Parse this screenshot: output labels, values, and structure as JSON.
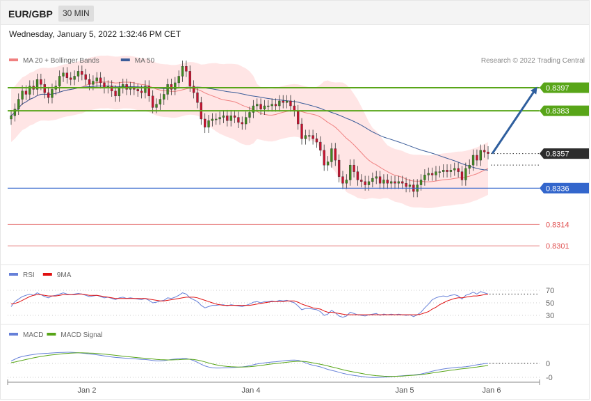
{
  "header": {
    "symbol": "EUR/GBP",
    "timeframe": "30 MIN",
    "timestamp": "Wednesday, January 5, 2022 1:32:46 PM CET"
  },
  "credit": "Research © 2022 Trading Central",
  "colors": {
    "resistance": "#58a518",
    "pivot": "#3366cc",
    "support": "#e05050",
    "current": "#2d2d2d",
    "candle_up": "#3f8a1f",
    "candle_down": "#c8102e",
    "bands_fill": "#ffdcdc",
    "ma20": "#f08080",
    "ma50": "#3a5c99",
    "rsi": "#6680d8",
    "rsi_ma": "#e01010",
    "macd": "#6680d8",
    "macd_signal": "#58a518",
    "arrow": "#2f5f9e"
  },
  "chart_data": [
    {
      "type": "candlestick",
      "legend": [
        {
          "name": "MA 20 + Bollinger Bands",
          "color": "#f08080"
        },
        {
          "name": "MA 50",
          "color": "#3a5c99"
        }
      ],
      "legend_position": "top-left",
      "ylim": [
        0.8293,
        0.8408
      ],
      "x_ticks": [
        "Jan 2",
        "Jan 4",
        "Jan 5",
        "Jan 6"
      ],
      "levels": [
        {
          "value": 0.8397,
          "label": "0.8397",
          "kind": "resistance"
        },
        {
          "value": 0.8383,
          "label": "0.8383",
          "kind": "resistance"
        },
        {
          "value": 0.8357,
          "label": "0.8357",
          "kind": "current"
        },
        {
          "value": 0.8336,
          "label": "0.8336",
          "kind": "pivot"
        },
        {
          "value": 0.8314,
          "label": "0.8314",
          "kind": "support"
        },
        {
          "value": 0.8301,
          "label": "0.8301",
          "kind": "support"
        }
      ],
      "projection": {
        "from": 0.8357,
        "to": 0.8397
      },
      "close": [
        0.838,
        0.8384,
        0.839,
        0.8395,
        0.8393,
        0.8398,
        0.8396,
        0.8402,
        0.8399,
        0.8394,
        0.8391,
        0.8396,
        0.8398,
        0.8404,
        0.8406,
        0.8403,
        0.8402,
        0.8404,
        0.8407,
        0.8405,
        0.8402,
        0.8399,
        0.8401,
        0.8403,
        0.84,
        0.8397,
        0.8398,
        0.8395,
        0.8392,
        0.8397,
        0.8399,
        0.8396,
        0.8397,
        0.8396,
        0.8395,
        0.8394,
        0.8398,
        0.8392,
        0.8385,
        0.8387,
        0.839,
        0.8393,
        0.8399,
        0.8396,
        0.84,
        0.8404,
        0.841,
        0.8407,
        0.8398,
        0.8394,
        0.8388,
        0.8378,
        0.8373,
        0.8377,
        0.8378,
        0.8378,
        0.8379,
        0.838,
        0.8377,
        0.838,
        0.8379,
        0.8376,
        0.8375,
        0.8379,
        0.8382,
        0.8386,
        0.8387,
        0.8384,
        0.8386,
        0.8386,
        0.8387,
        0.8386,
        0.8389,
        0.8388,
        0.8389,
        0.8386,
        0.8383,
        0.8375,
        0.8366,
        0.8368,
        0.8368,
        0.8366,
        0.8364,
        0.8359,
        0.835,
        0.8352,
        0.836,
        0.8353,
        0.8343,
        0.8339,
        0.8341,
        0.835,
        0.8346,
        0.8341,
        0.834,
        0.8338,
        0.834,
        0.8342,
        0.8343,
        0.8339,
        0.8341,
        0.8339,
        0.834,
        0.8339,
        0.834,
        0.8339,
        0.8337,
        0.8338,
        0.8334,
        0.8338,
        0.8341,
        0.8344,
        0.8345,
        0.8344,
        0.8346,
        0.8346,
        0.8347,
        0.8346,
        0.8347,
        0.8348,
        0.8346,
        0.8341,
        0.8348,
        0.835,
        0.8356,
        0.8353,
        0.8359,
        0.8358,
        0.8357
      ],
      "open": [
        0.8378,
        0.838,
        0.8384,
        0.839,
        0.8395,
        0.8393,
        0.8398,
        0.8396,
        0.8402,
        0.8399,
        0.8394,
        0.8391,
        0.8396,
        0.8398,
        0.8404,
        0.8406,
        0.8403,
        0.8402,
        0.8404,
        0.8407,
        0.8405,
        0.8402,
        0.8399,
        0.8401,
        0.8403,
        0.84,
        0.8397,
        0.8398,
        0.8395,
        0.8392,
        0.8397,
        0.8399,
        0.8396,
        0.8397,
        0.8396,
        0.8395,
        0.8394,
        0.8398,
        0.8392,
        0.8385,
        0.8387,
        0.839,
        0.8393,
        0.8399,
        0.8396,
        0.84,
        0.8404,
        0.841,
        0.8407,
        0.8398,
        0.8394,
        0.8388,
        0.8378,
        0.8373,
        0.8377,
        0.8378,
        0.8378,
        0.8379,
        0.838,
        0.8377,
        0.838,
        0.8379,
        0.8376,
        0.8375,
        0.8379,
        0.8382,
        0.8386,
        0.8387,
        0.8384,
        0.8386,
        0.8386,
        0.8387,
        0.8386,
        0.8389,
        0.8388,
        0.8389,
        0.8386,
        0.8383,
        0.8375,
        0.8366,
        0.8368,
        0.8368,
        0.8366,
        0.8364,
        0.8359,
        0.835,
        0.8352,
        0.836,
        0.8353,
        0.8343,
        0.8339,
        0.8341,
        0.835,
        0.8346,
        0.8341,
        0.834,
        0.8338,
        0.834,
        0.8342,
        0.8343,
        0.8339,
        0.8341,
        0.8339,
        0.834,
        0.8339,
        0.834,
        0.8339,
        0.8337,
        0.8338,
        0.8334,
        0.8338,
        0.8341,
        0.8344,
        0.8345,
        0.8344,
        0.8346,
        0.8346,
        0.8347,
        0.8346,
        0.8347,
        0.8348,
        0.8346,
        0.8341,
        0.8348,
        0.835,
        0.8356,
        0.8353,
        0.8359,
        0.8358
      ]
    },
    {
      "type": "line",
      "legend": [
        {
          "name": "RSI",
          "color": "#6680d8"
        },
        {
          "name": "9MA",
          "color": "#e01010"
        }
      ],
      "ylim": [
        20,
        80
      ],
      "y_ticks": [
        {
          "value": 70,
          "label": "70"
        },
        {
          "value": 50,
          "label": "50"
        },
        {
          "value": 30,
          "label": "30"
        }
      ],
      "series": [
        {
          "key": "rsi",
          "values": [
            44,
            52,
            56,
            60,
            62,
            64,
            62,
            66,
            63,
            60,
            58,
            61,
            62,
            64,
            66,
            64,
            63,
            64,
            65,
            64,
            62,
            60,
            61,
            62,
            60,
            58,
            59,
            57,
            55,
            58,
            59,
            57,
            58,
            57,
            56,
            55,
            57,
            54,
            50,
            51,
            53,
            54,
            58,
            57,
            59,
            62,
            66,
            64,
            58,
            55,
            52,
            46,
            42,
            44,
            46,
            46,
            47,
            47,
            45,
            47,
            46,
            45,
            44,
            46,
            48,
            51,
            52,
            50,
            52,
            52,
            53,
            52,
            54,
            53,
            54,
            52,
            50,
            45,
            39,
            41,
            41,
            40,
            39,
            36,
            30,
            32,
            38,
            34,
            29,
            27,
            29,
            35,
            33,
            31,
            30,
            29,
            31,
            32,
            33,
            30,
            32,
            31,
            32,
            31,
            32,
            31,
            30,
            31,
            28,
            31,
            35,
            42,
            48,
            55,
            58,
            60,
            61,
            60,
            62,
            63,
            61,
            56,
            62,
            64,
            67,
            64,
            68,
            66,
            64
          ]
        },
        {
          "key": "ma9",
          "values": [
            48,
            49,
            51,
            54,
            57,
            60,
            62,
            63,
            63,
            62,
            61,
            61,
            61,
            62,
            63,
            63,
            63,
            63,
            64,
            64,
            63,
            62,
            62,
            62,
            61,
            60,
            59,
            58,
            57,
            57,
            57,
            57,
            57,
            57,
            57,
            57,
            57,
            56,
            55,
            54,
            53,
            53,
            54,
            55,
            56,
            57,
            58,
            59,
            59,
            59,
            58,
            56,
            54,
            52,
            50,
            48,
            47,
            46,
            46,
            46,
            46,
            46,
            46,
            46,
            46,
            47,
            48,
            49,
            50,
            51,
            52,
            52,
            52,
            52,
            53,
            53,
            53,
            51,
            48,
            46,
            44,
            42,
            41,
            40,
            37,
            35,
            35,
            34,
            33,
            32,
            31,
            31,
            31,
            31,
            31,
            31,
            31,
            31,
            31,
            31,
            31,
            31,
            31,
            31,
            31,
            31,
            31,
            31,
            31,
            31,
            32,
            34,
            36,
            40,
            43,
            47,
            50,
            53,
            55,
            57,
            58,
            58,
            59,
            60,
            61,
            61,
            62,
            63,
            64
          ]
        }
      ]
    },
    {
      "type": "line",
      "legend": [
        {
          "name": "MACD",
          "color": "#6680d8"
        },
        {
          "name": "MACD Signal",
          "color": "#58a518"
        }
      ],
      "ylim": [
        -0.0012,
        0.0014
      ],
      "y_ticks": [
        {
          "value": 0,
          "label": "0"
        },
        {
          "value": -0.001,
          "label": "-0"
        }
      ],
      "series": [
        {
          "key": "macd",
          "values": [
            0.00017,
            0.0003,
            0.00042,
            0.0005,
            0.00055,
            0.0006,
            0.00064,
            0.00068,
            0.0007,
            0.00072,
            0.00073,
            0.00075,
            0.00077,
            0.00078,
            0.00079,
            0.0008,
            0.0008,
            0.00078,
            0.00076,
            0.00074,
            0.00071,
            0.00068,
            0.00065,
            0.00062,
            0.00058,
            0.00054,
            0.0005,
            0.00046,
            0.00043,
            0.00041,
            0.00039,
            0.00037,
            0.00035,
            0.00033,
            0.00031,
            0.00029,
            0.00028,
            0.00025,
            0.00021,
            0.00018,
            0.00018,
            0.0002,
            0.00024,
            0.00028,
            0.00031,
            0.00034,
            0.00036,
            0.00035,
            0.00029,
            0.0002,
            8e-05,
            -6e-05,
            -0.00018,
            -0.00026,
            -0.00031,
            -0.00033,
            -0.00033,
            -0.00032,
            -0.00031,
            -0.0003,
            -0.00029,
            -0.00027,
            -0.00025,
            -0.00022,
            -0.00016,
            -0.0001,
            -4e-05,
            0.0,
            4e-05,
            7e-05,
            0.0001,
            0.00012,
            0.00015,
            0.00018,
            0.00021,
            0.00023,
            0.00024,
            0.00022,
            0.00015,
            4e-05,
            -6e-05,
            -0.00013,
            -0.00019,
            -0.00025,
            -0.00034,
            -0.00043,
            -0.0005,
            -0.00056,
            -0.00064,
            -0.00071,
            -0.00077,
            -0.00082,
            -0.00086,
            -0.0009,
            -0.00094,
            -0.00097,
            -0.001,
            -0.00101,
            -0.00101,
            -0.001,
            -0.00099,
            -0.00097,
            -0.00095,
            -0.00093,
            -0.00091,
            -0.00089,
            -0.00087,
            -0.00085,
            -0.00083,
            -0.0008,
            -0.00076,
            -0.0007,
            -0.00063,
            -0.00056,
            -0.0005,
            -0.00045,
            -0.0004,
            -0.00036,
            -0.00033,
            -0.0003,
            -0.00027,
            -0.00026,
            -0.00024,
            -0.0002,
            -0.00015,
            -0.0001,
            -6e-05,
            -2e-05,
            0.0
          ]
        },
        {
          "key": "signal",
          "values": [
            5e-05,
            0.0001,
            0.00016,
            0.00022,
            0.00028,
            0.00034,
            0.0004,
            0.00045,
            0.0005,
            0.00054,
            0.00058,
            0.00061,
            0.00064,
            0.00067,
            0.0007,
            0.00072,
            0.00074,
            0.00075,
            0.00076,
            0.00076,
            0.00075,
            0.00074,
            0.00073,
            0.00071,
            0.00069,
            0.00067,
            0.00064,
            0.00061,
            0.00058,
            0.00055,
            0.00052,
            0.00049,
            0.00047,
            0.00044,
            0.00041,
            0.00039,
            0.00037,
            0.00035,
            0.00032,
            0.00029,
            0.00027,
            0.00026,
            0.00025,
            0.00025,
            0.00026,
            0.00027,
            0.00029,
            0.0003,
            0.0003,
            0.00028,
            0.00024,
            0.00018,
            0.00011,
            3e-05,
            -4e-05,
            -0.0001,
            -0.00015,
            -0.00019,
            -0.00022,
            -0.00024,
            -0.00025,
            -0.00026,
            -0.00026,
            -0.00025,
            -0.00024,
            -0.00021,
            -0.00018,
            -0.00015,
            -0.00011,
            -7e-05,
            -4e-05,
            -1e-05,
            2e-05,
            5e-05,
            8e-05,
            0.00011,
            0.00013,
            0.00015,
            0.00015,
            0.00013,
            9e-05,
            4e-05,
            -1e-05,
            -6e-05,
            -0.00012,
            -0.00018,
            -0.00025,
            -0.00031,
            -0.00038,
            -0.00045,
            -0.00051,
            -0.00057,
            -0.00062,
            -0.00067,
            -0.00072,
            -0.00077,
            -0.00081,
            -0.00085,
            -0.00088,
            -0.0009,
            -0.00092,
            -0.00093,
            -0.00093,
            -0.00093,
            -0.00092,
            -0.00091,
            -0.00089,
            -0.00087,
            -0.00085,
            -0.00083,
            -0.0008,
            -0.00077,
            -0.00073,
            -0.00069,
            -0.00065,
            -0.00061,
            -0.00057,
            -0.00053,
            -0.00049,
            -0.00046,
            -0.00042,
            -0.00039,
            -0.00036,
            -0.00033,
            -0.00029,
            -0.00026,
            -0.00022,
            -0.00019,
            -0.00015
          ]
        }
      ]
    }
  ]
}
